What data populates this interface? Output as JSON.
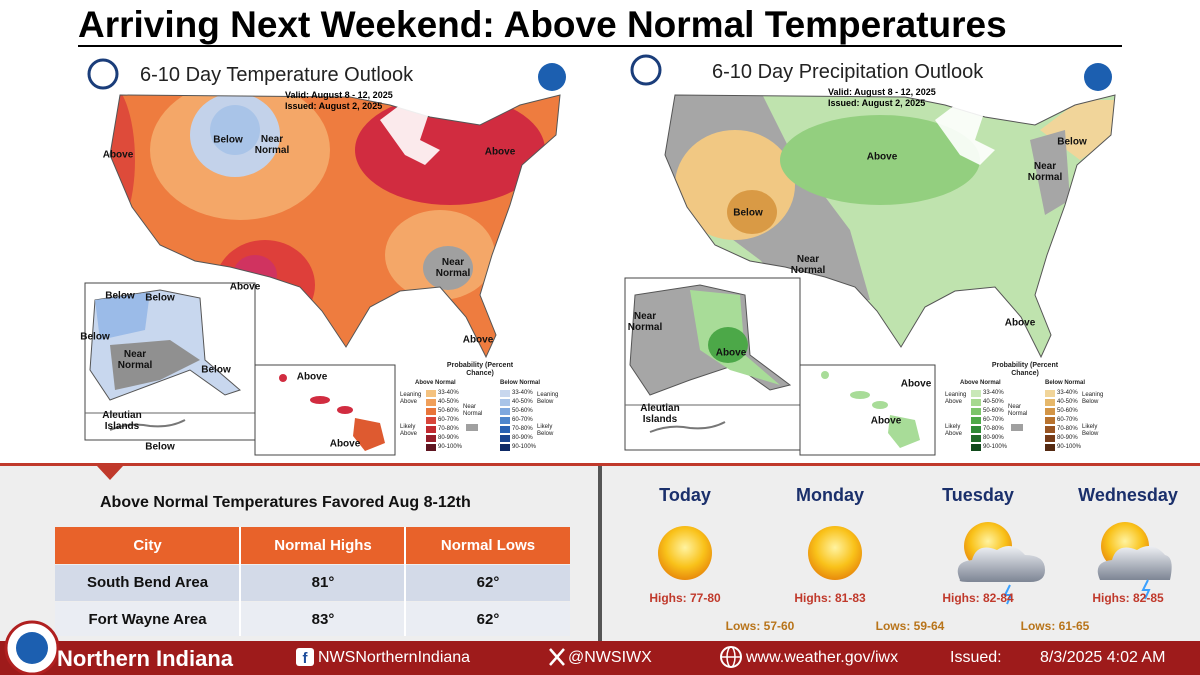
{
  "title": "Arriving Next Weekend: Above Normal Temperatures",
  "maps": [
    {
      "title": "6-10 Day Temperature Outlook",
      "valid": "Valid:  August 8 - 12, 2025",
      "issued": "Issued:  August 2, 2025",
      "labels": [
        "Above",
        "Below",
        "Near Normal",
        "Above",
        "Above",
        "Near Normal",
        "Above",
        "Below",
        "Below",
        "Below",
        "Near Normal",
        "Below",
        "Above",
        "Above",
        "Aleutian Islands",
        "Below"
      ],
      "legend": {
        "title": "Probability (Percent Chance)",
        "above_header": "Above Normal",
        "below_header": "Below Normal",
        "leaning_above": "Leaning Above",
        "likely_above": "Likely Above",
        "near_normal": "Near Normal",
        "leaning_below": "Leaning Below",
        "likely_below": "Likely Below",
        "above_ranges": [
          "33-40%",
          "40-50%",
          "50-60%",
          "60-70%",
          "70-80%",
          "80-90%",
          "90-100%"
        ],
        "below_ranges": [
          "33-40%",
          "40-50%",
          "50-60%",
          "60-70%",
          "70-80%",
          "80-90%",
          "90-100%"
        ]
      }
    },
    {
      "title": "6-10 Day Precipitation Outlook",
      "valid": "Valid:  August 8 - 12, 2025",
      "issued": "Issued:  August 2, 2025",
      "labels": [
        "Above",
        "Below",
        "Near Normal",
        "Below",
        "Near Normal",
        "Above",
        "Near Normal",
        "Above",
        "Above",
        "Above",
        "Aleutian Islands"
      ],
      "legend": {
        "title": "Probability (Percent Chance)",
        "above_header": "Above Normal",
        "below_header": "Below Normal",
        "leaning_above": "Leaning Above",
        "likely_above": "Likely Above",
        "near_normal": "Near Normal",
        "leaning_below": "Leaning Below",
        "likely_below": "Likely Below",
        "above_ranges": [
          "33-40%",
          "40-50%",
          "50-60%",
          "60-70%",
          "70-80%",
          "80-90%",
          "90-100%"
        ],
        "below_ranges": [
          "33-40%",
          "40-50%",
          "50-60%",
          "60-70%",
          "70-80%",
          "80-90%",
          "90-100%"
        ]
      }
    }
  ],
  "table": {
    "title": "Above Normal Temperatures Favored Aug 8-12th",
    "headers": [
      "City",
      "Normal Highs",
      "Normal Lows"
    ],
    "rows": [
      [
        "South Bend Area",
        "81°",
        "62°"
      ],
      [
        "Fort Wayne Area",
        "83°",
        "62°"
      ]
    ]
  },
  "forecast": {
    "days": [
      {
        "name": "Today",
        "highs": "Highs: 77-80"
      },
      {
        "name": "Monday",
        "highs": "Highs: 81-83"
      },
      {
        "name": "Tuesday",
        "highs": "Highs: 82-84"
      },
      {
        "name": "Wednesday",
        "highs": "Highs: 82-85"
      }
    ],
    "lows": [
      "Lows: 57-60",
      "Lows: 59-64",
      "Lows: 61-65"
    ]
  },
  "footer": {
    "office": "Northern Indiana",
    "facebook": "NWSNorthernIndiana",
    "x": "@NWSIWX",
    "web": "www.weather.gov/iwx",
    "issued_label": "Issued:",
    "issued": "8/3/2025 4:02 AM"
  }
}
